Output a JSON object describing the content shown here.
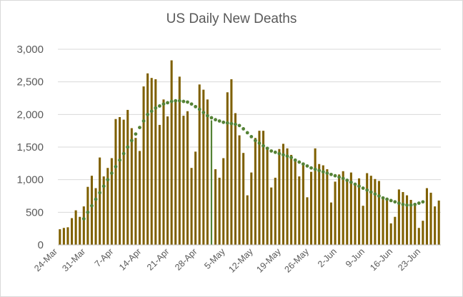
{
  "chart_data": {
    "type": "bar",
    "title": "US Daily New Deaths",
    "xlabel": "",
    "ylabel": "",
    "ylim": [
      0,
      3000
    ],
    "yticks": [
      "0",
      "500",
      "1,000",
      "1,500",
      "2,000",
      "2,500",
      "3,000"
    ],
    "ytick_values": [
      0,
      500,
      1000,
      1500,
      2000,
      2500,
      3000
    ],
    "xticks": [
      "24-Mar",
      "31-Mar",
      "7-Apr",
      "14-Apr",
      "21-Apr",
      "28-Apr",
      "5-May",
      "12-May",
      "19-May",
      "26-May",
      "2-Jun",
      "9-Jun",
      "16-Jun",
      "23-Jun"
    ],
    "xtick_index": [
      0,
      7,
      14,
      21,
      28,
      35,
      42,
      49,
      56,
      63,
      70,
      77,
      84,
      91
    ],
    "grid": true,
    "legend": "none",
    "colors": {
      "bars": "#7f6000",
      "trend": "#548235",
      "highlight": "#548235",
      "grid": "#d9d9d9",
      "text": "#595959"
    },
    "series": [
      {
        "name": "Daily New Deaths",
        "kind": "bar",
        "start_date": "24-Mar",
        "values": [
          240,
          260,
          270,
          410,
          530,
          430,
          590,
          890,
          1060,
          870,
          1340,
          1050,
          1180,
          1330,
          1930,
          1960,
          1920,
          2070,
          1790,
          1640,
          1440,
          2430,
          2630,
          2560,
          2540,
          1840,
          2230,
          1970,
          2830,
          2190,
          2580,
          1980,
          2050,
          1180,
          1430,
          2460,
          2380,
          2230,
          1910,
          1160,
          1030,
          1330,
          2340,
          2540,
          2020,
          1680,
          1410,
          760,
          1110,
          1640,
          1750,
          1750,
          1500,
          880,
          1030,
          1470,
          1550,
          1480,
          1380,
          1320,
          1050,
          1260,
          730,
          1120,
          1480,
          1240,
          1220,
          1160,
          650,
          970,
          1080,
          1130,
          1010,
          1110,
          920,
          1020,
          600,
          1100,
          1060,
          1010,
          980,
          740,
          720,
          330,
          430,
          850,
          810,
          760,
          690,
          620,
          260,
          370,
          870,
          800,
          590,
          680
        ],
        "highlight_indices": [
          38
        ]
      },
      {
        "name": "7-day average",
        "kind": "dotted-line",
        "start_index": 6,
        "values": [
          400,
          500,
          600,
          700,
          800,
          900,
          1000,
          1100,
          1200,
          1300,
          1400,
          1500,
          1600,
          1700,
          1800,
          1900,
          2000,
          2050,
          2100,
          2130,
          2160,
          2180,
          2200,
          2210,
          2210,
          2200,
          2190,
          2160,
          2120,
          2080,
          2030,
          1980,
          1950,
          1920,
          1900,
          1880,
          1870,
          1860,
          1850,
          1830,
          1780,
          1720,
          1660,
          1600,
          1560,
          1520,
          1480,
          1440,
          1420,
          1400,
          1380,
          1360,
          1340,
          1300,
          1270,
          1240,
          1210,
          1180,
          1160,
          1140,
          1120,
          1100,
          1080,
          1060,
          1040,
          1020,
          990,
          960,
          930,
          900,
          870,
          840,
          810,
          780,
          750,
          720,
          700,
          680,
          660,
          640,
          620,
          610,
          610,
          620,
          640,
          660
        ]
      }
    ]
  }
}
